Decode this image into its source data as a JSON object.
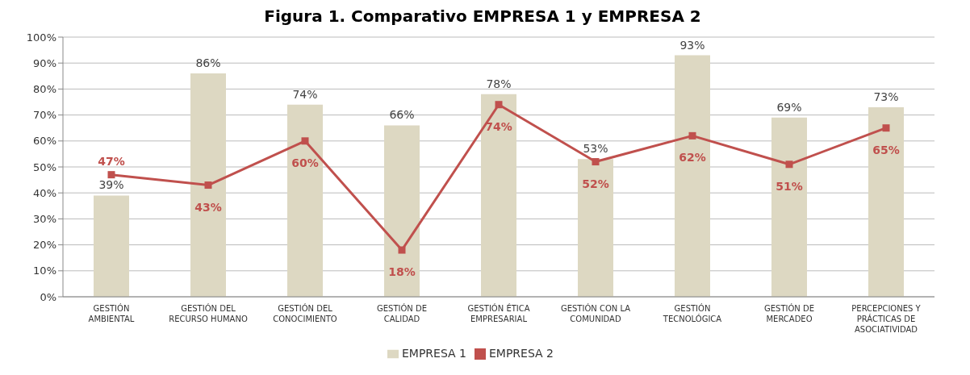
{
  "chart_data": {
    "type": "bar",
    "title": "Figura 1. Comparativo EMPRESA 1 y EMPRESA 2",
    "categories": [
      "GESTIÓN AMBIENTAL",
      "GESTIÓN DEL RECURSO HUMANO",
      "GESTIÓN DEL CONOCIMIENTO",
      "GESTIÓN DE CALIDAD",
      "GESTIÓN ÉTICA EMPRESARIAL",
      "GESTIÓN CON LA COMUNIDAD",
      "GESTIÓN TECNOLÓGICA",
      "GESTIÓN DE MERCADEO",
      "PERCEPCIONES Y PRÁCTICAS DE ASOCIATIVIDAD"
    ],
    "series": [
      {
        "name": "EMPRESA 1",
        "color": "#ddd8c2",
        "values": [
          39,
          86,
          74,
          66,
          78,
          53,
          93,
          69,
          73
        ],
        "value_labels": [
          "39%",
          "86%",
          "74%",
          "66%",
          "78%",
          "53%",
          "93%",
          "69%",
          "73%"
        ]
      },
      {
        "name": "EMPRESA 2",
        "type": "line",
        "color": "#c0504d",
        "values": [
          47,
          43,
          60,
          18,
          74,
          52,
          62,
          51,
          65
        ],
        "value_labels": [
          "47%",
          "43%",
          "60%",
          "18%",
          "74%",
          "52%",
          "62%",
          "51%",
          "65%"
        ]
      }
    ],
    "ylim": [
      0,
      100
    ],
    "yticks": [
      {
        "value": 0,
        "label": "0%"
      },
      {
        "value": 10,
        "label": "10%"
      },
      {
        "value": 20,
        "label": "20%"
      },
      {
        "value": 30,
        "label": "30%"
      },
      {
        "value": 40,
        "label": "40%"
      },
      {
        "value": 50,
        "label": "50%"
      },
      {
        "value": 60,
        "label": "60%"
      },
      {
        "value": 70,
        "label": "70%"
      },
      {
        "value": 80,
        "label": "80%"
      },
      {
        "value": 90,
        "label": "90%"
      },
      {
        "value": 100,
        "label": "100%"
      }
    ],
    "grid": "y",
    "legend": "bottom",
    "marker": "square",
    "line_style": "solid"
  }
}
